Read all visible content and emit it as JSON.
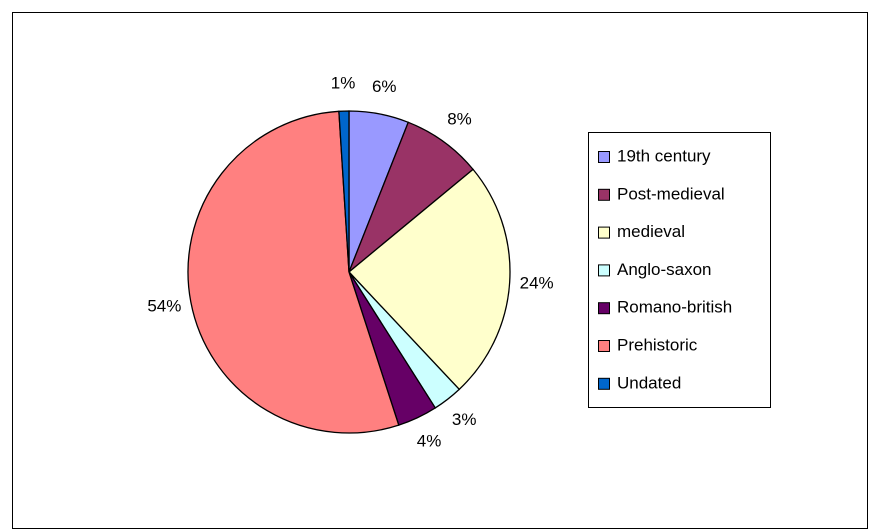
{
  "chart_data": {
    "type": "pie",
    "categories": [
      "19th century",
      "Post-medieval",
      "medieval",
      "Anglo-saxon",
      "Romano-british",
      "Prehistoric",
      "Undated"
    ],
    "values": [
      6,
      8,
      24,
      3,
      4,
      54,
      1
    ],
    "value_labels": [
      "6%",
      "8%",
      "24%",
      "3%",
      "4%",
      "54%",
      "1%"
    ],
    "colors": [
      "#9999ff",
      "#993366",
      "#ffffcc",
      "#ccffff",
      "#660066",
      "#ff8080",
      "#0066cc"
    ],
    "legend": "right"
  }
}
